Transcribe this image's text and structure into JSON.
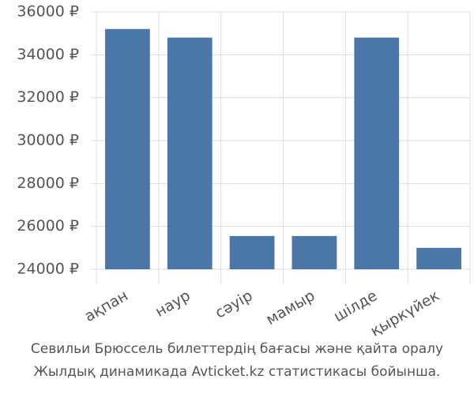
{
  "chart_data": {
    "type": "bar",
    "categories": [
      "ақпан",
      "наур",
      "сәуір",
      "мамыр",
      "шілде",
      "қыркүйек"
    ],
    "values": [
      35200,
      34800,
      25550,
      25550,
      34800,
      25000
    ],
    "color": "#4a77a8",
    "ylim": [
      24000,
      36000
    ],
    "yticks": [
      {
        "value": 24000,
        "label": "24000 ₽"
      },
      {
        "value": 26000,
        "label": "26000 ₽"
      },
      {
        "value": 28000,
        "label": "28000 ₽"
      },
      {
        "value": 30000,
        "label": "30000 ₽"
      },
      {
        "value": 32000,
        "label": "32000 ₽"
      },
      {
        "value": 34000,
        "label": "34000 ₽"
      },
      {
        "value": 36000,
        "label": "36000 ₽"
      }
    ],
    "grid": true,
    "caption": [
      "Севильи Брюссель билеттердің бағасы және қайта оралу",
      "Жылдық динамикада Avticket.kz статистикасы бойынша."
    ]
  }
}
